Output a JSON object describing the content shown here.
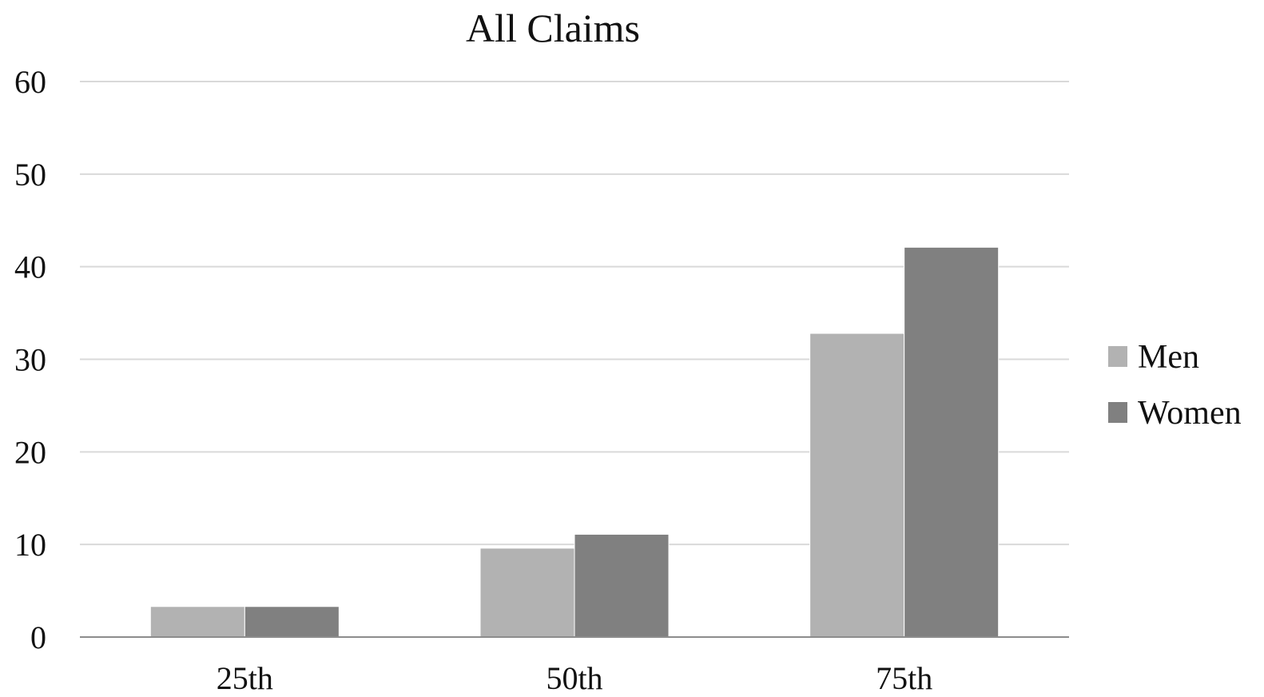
{
  "chart_data": {
    "type": "bar",
    "title": "All Claims",
    "xlabel": "",
    "ylabel": "",
    "categories": [
      "25th",
      "50th",
      "75th"
    ],
    "series": [
      {
        "name": "Men",
        "values": [
          3.3,
          9.6,
          32.8
        ],
        "color": "#b2b2b2"
      },
      {
        "name": "Women",
        "values": [
          3.3,
          11.1,
          42.1
        ],
        "color": "#808080"
      }
    ],
    "ylim": [
      0,
      60
    ],
    "yticks": [
      0,
      10,
      20,
      30,
      40,
      50,
      60
    ],
    "grid": true,
    "legend_position": "right",
    "colors": {
      "gridline": "#d9d9d9",
      "axis": "#8c8c8c",
      "text": "#111111"
    }
  }
}
